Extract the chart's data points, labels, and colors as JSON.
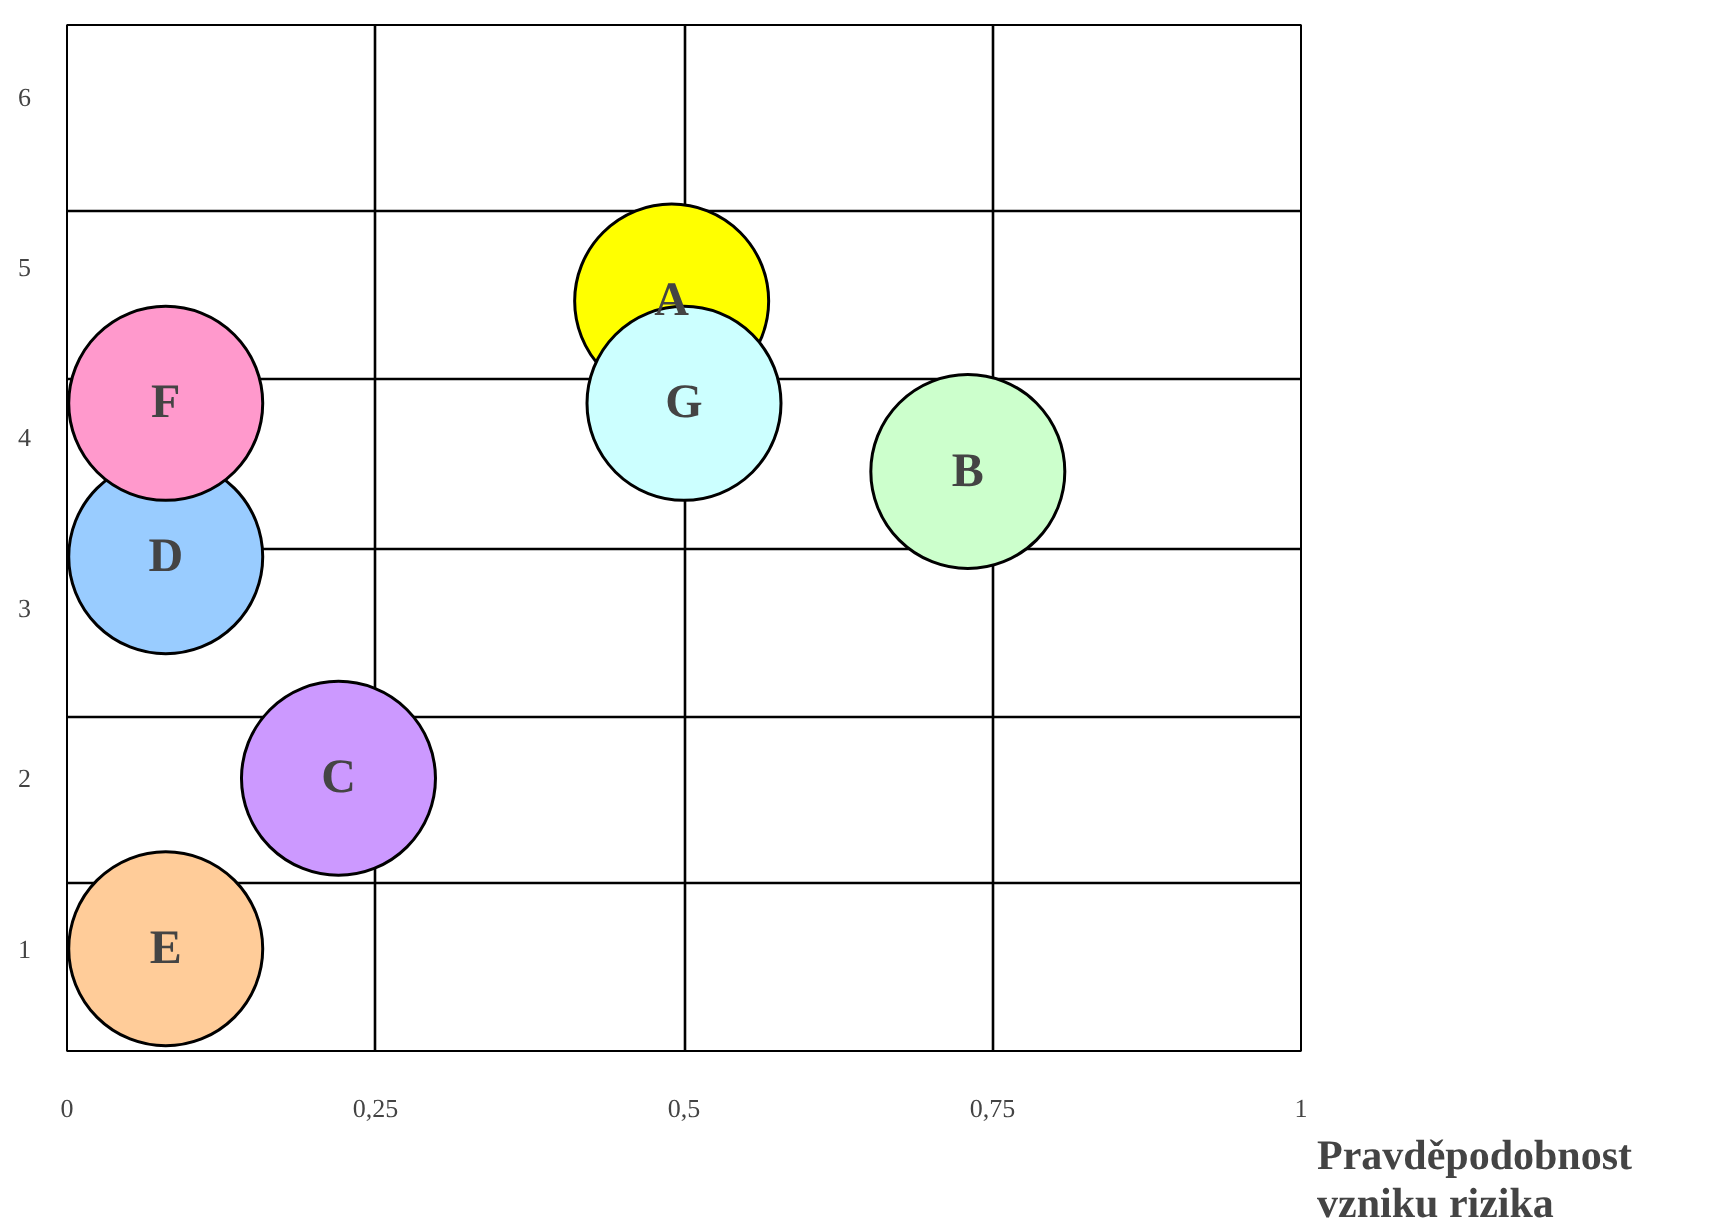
{
  "chart_data": {
    "type": "scatter",
    "xlabel": "Pravděpodobnost\nvzniku rizika",
    "x": [
      0.08,
      0.22,
      0.08,
      0.08,
      0.49,
      0.5,
      0.73
    ],
    "values": [
      1.0,
      2.0,
      3.3,
      4.2,
      4.8,
      4.2,
      3.8
    ],
    "colors": [
      "#ffcc99",
      "#cc99ff",
      "#99ccff",
      "#ff99cc",
      "#ffff00",
      "#ccffff",
      "#ccffcc"
    ],
    "annotations": [
      {
        "text": "E",
        "x": 0.08,
        "y": 1.0
      },
      {
        "text": "C",
        "x": 0.22,
        "y": 2.0
      },
      {
        "text": "D",
        "x": 0.08,
        "y": 3.3
      },
      {
        "text": "F",
        "x": 0.08,
        "y": 4.2
      },
      {
        "text": "A",
        "x": 0.49,
        "y": 4.8
      },
      {
        "text": "G",
        "x": 0.5,
        "y": 4.2
      },
      {
        "text": "B",
        "x": 0.73,
        "y": 3.8
      }
    ],
    "marker": "circle",
    "xlim": [
      0,
      1
    ],
    "xticks": [
      0,
      {
        "value": 0.25,
        "label": "0,25"
      },
      {
        "value": 0.5,
        "label": "0,5"
      },
      {
        "value": 0.75,
        "label": "0,75"
      },
      1
    ],
    "ylim": [
      0.4,
      6.42
    ],
    "yticks": [
      1,
      2,
      3,
      4,
      5,
      6,
      {
        "value": 1.38,
        "label": null
      },
      {
        "value": 2.36,
        "label": null
      },
      {
        "value": 3.35,
        "label": null
      },
      {
        "value": 4.34,
        "label": null
      },
      {
        "value": 5.33,
        "label": null
      }
    ],
    "grid": true
  }
}
